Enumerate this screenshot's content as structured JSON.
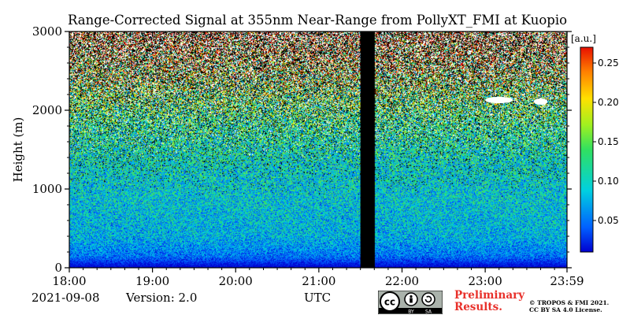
{
  "title": "Range-Corrected Signal at 355nm Near-Range from PollyXT_FMI at Kuopio",
  "footer": {
    "date": "2021-09-08",
    "version": "Version: 2.0",
    "preliminary_line1": "Preliminary",
    "preliminary_line2": "Results.",
    "credit_line1": "© TROPOS & FMI 2021.",
    "credit_line2": "CC BY SA 4.0 License.",
    "license_labels": [
      "BY",
      "SA"
    ]
  },
  "chart_data": {
    "type": "heatmap",
    "title": "Range-Corrected Signal at 355nm Near-Range from PollyXT_FMI at Kuopio",
    "xlabel": "UTC",
    "ylabel": "Height (m)",
    "x_ticks": [
      "18:00",
      "19:00",
      "20:00",
      "21:00",
      "22:00",
      "23:00",
      "23:59"
    ],
    "y_ticks": [
      0,
      1000,
      2000,
      3000
    ],
    "xlim": [
      "18:00",
      "23:59"
    ],
    "ylim": [
      0,
      3000
    ],
    "colorbar": {
      "label": "[a.u.]",
      "ticks": [
        0.05,
        0.1,
        0.15,
        0.2,
        0.25
      ],
      "tick_labels": [
        "0.05",
        "0.10",
        "0.15",
        "0.20",
        "0.25"
      ],
      "range": [
        0.01,
        0.27
      ],
      "colormap": "jet"
    },
    "no_data_gap": {
      "start": "21:30",
      "end": "21:40",
      "color": "#000000"
    },
    "cloud_features": [
      {
        "start": "23:00",
        "end": "23:20",
        "height": 2130
      },
      {
        "start": "23:35",
        "end": "23:45",
        "height": 2110
      }
    ],
    "profile": [
      {
        "height": 0,
        "value": 0.01
      },
      {
        "height": 50,
        "value": 0.02
      },
      {
        "height": 150,
        "value": 0.05
      },
      {
        "height": 400,
        "value": 0.08
      },
      {
        "height": 800,
        "value": 0.09
      },
      {
        "height": 1300,
        "value": 0.1
      },
      {
        "height": 1800,
        "value": 0.12
      },
      {
        "height": 2200,
        "value": 0.15
      },
      {
        "height": 2500,
        "value": 0.18
      },
      {
        "height": 2800,
        "value": 0.22
      },
      {
        "height": 3000,
        "value": 0.25
      }
    ]
  }
}
